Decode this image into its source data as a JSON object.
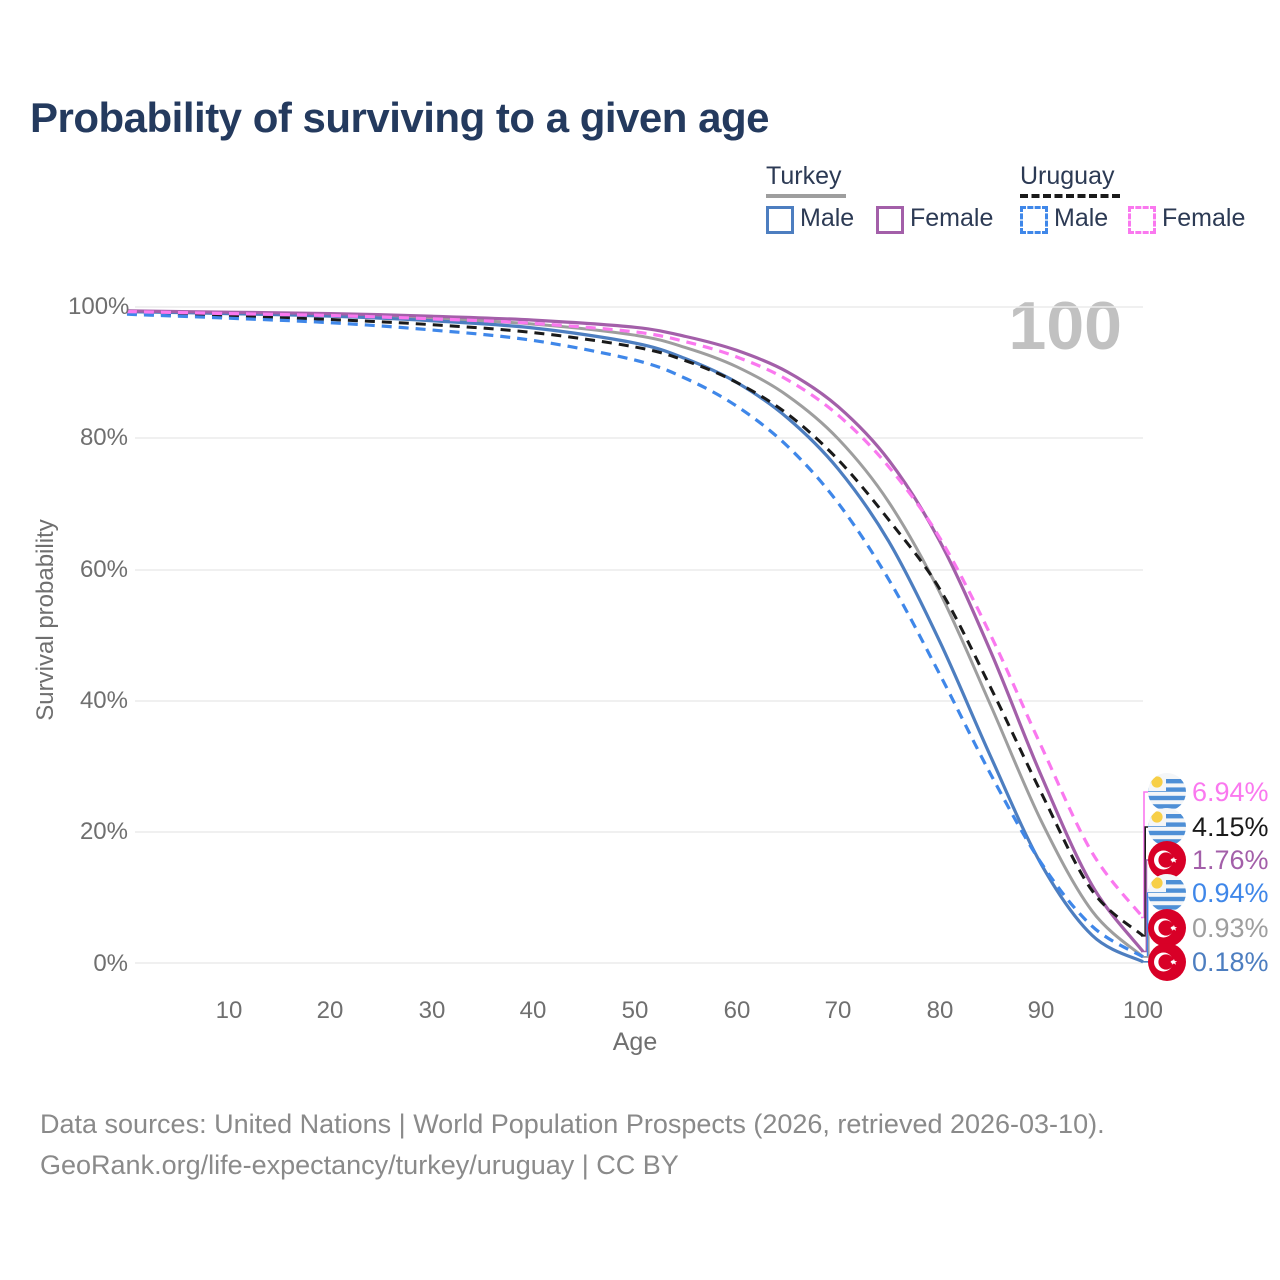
{
  "title": "Probability of surviving to a given age",
  "watermark": "100",
  "legend": {
    "turkey": {
      "label": "Turkey",
      "line_color": "#9e9e9e",
      "line_style": "solid",
      "male_label": "Male",
      "male_color": "#4d7ec0",
      "female_label": "Female",
      "female_color": "#a35fa9"
    },
    "uruguay": {
      "label": "Uruguay",
      "line_color": "#1a1a1a",
      "line_style": "dashed",
      "male_label": "Male",
      "male_color": "#3f87e9",
      "female_label": "Female",
      "female_color": "#fa78ef"
    }
  },
  "axes": {
    "y_title": "Survival probability",
    "x_title": "Age",
    "y_ticks": [
      "100%",
      "80%",
      "60%",
      "40%",
      "20%",
      "0%"
    ],
    "x_ticks": [
      "10",
      "20",
      "30",
      "40",
      "50",
      "60",
      "70",
      "80",
      "90",
      "100"
    ]
  },
  "chart_data": {
    "type": "line",
    "title": "Probability of surviving to a given age",
    "xlabel": "Age",
    "ylabel": "Survival probability",
    "xlim": [
      0,
      100
    ],
    "ylim": [
      0,
      100
    ],
    "grid": "horizontal",
    "x": [
      0,
      10,
      20,
      30,
      40,
      50,
      55,
      60,
      65,
      70,
      75,
      80,
      85,
      90,
      95,
      100
    ],
    "series": [
      {
        "name": "Turkey",
        "country": "turkey",
        "sex": "both",
        "color": "#9e9e9e",
        "dash": "none",
        "values": [
          99.35,
          99.1,
          98.8,
          98.25,
          97.4,
          95.7,
          93.8,
          90.9,
          86.5,
          79.9,
          70.2,
          56.5,
          39.3,
          21.6,
          7.9,
          0.93
        ],
        "end_label": "0.93%"
      },
      {
        "name": "Turkey Male",
        "country": "turkey",
        "sex": "male",
        "color": "#4d7ec0",
        "dash": "none",
        "values": [
          99.3,
          99.0,
          98.6,
          97.9,
          96.8,
          94.5,
          92.1,
          88.5,
          83.1,
          75.3,
          64.2,
          49.0,
          31.5,
          15.0,
          4.2,
          0.18
        ],
        "end_label": "0.18%"
      },
      {
        "name": "Turkey Female",
        "country": "turkey",
        "sex": "female",
        "color": "#a35fa9",
        "dash": "none",
        "values": [
          99.4,
          99.2,
          99.0,
          98.6,
          98.0,
          96.9,
          95.5,
          93.4,
          90.1,
          84.8,
          76.6,
          64.3,
          47.5,
          28.5,
          11.8,
          1.76
        ],
        "end_label": "1.76%"
      },
      {
        "name": "Uruguay",
        "country": "uruguay",
        "sex": "both",
        "color": "#1a1a1a",
        "dash": "10 7",
        "values": [
          99.1,
          98.6,
          98.1,
          97.3,
          96.1,
          93.9,
          91.8,
          88.5,
          83.7,
          76.7,
          67.5,
          57.0,
          42.0,
          25.9,
          11.0,
          4.15
        ],
        "end_label": "4.15%"
      },
      {
        "name": "Uruguay Male",
        "country": "uruguay",
        "sex": "male",
        "color": "#3f87e9",
        "dash": "10 7",
        "values": [
          98.9,
          98.3,
          97.6,
          96.5,
          94.9,
          91.9,
          89.1,
          84.9,
          78.8,
          70.1,
          58.4,
          44.0,
          28.8,
          15.2,
          5.6,
          0.94
        ],
        "end_label": "0.94%"
      },
      {
        "name": "Uruguay Female",
        "country": "uruguay",
        "sex": "female",
        "color": "#fa78ef",
        "dash": "10 7",
        "values": [
          99.3,
          99.0,
          98.7,
          98.2,
          97.5,
          96.2,
          94.7,
          92.4,
          88.9,
          83.5,
          75.6,
          64.8,
          50.0,
          33.0,
          16.8,
          6.94
        ],
        "end_label": "6.94%"
      }
    ]
  },
  "end_labels": [
    {
      "value": "6.94%",
      "pct": 6.94,
      "flag": "uruguay",
      "color": "#fa78ef"
    },
    {
      "value": "4.15%",
      "pct": 4.15,
      "flag": "uruguay",
      "color": "#1a1a1a"
    },
    {
      "value": "1.76%",
      "pct": 1.76,
      "flag": "turkey",
      "color": "#a35fa9"
    },
    {
      "value": "0.94%",
      "pct": 0.94,
      "flag": "uruguay",
      "color": "#3f87e9"
    },
    {
      "value": "0.93%",
      "pct": 0.93,
      "flag": "turkey",
      "color": "#9e9e9e"
    },
    {
      "value": "0.18%",
      "pct": 0.18,
      "flag": "turkey",
      "color": "#4d7ec0"
    }
  ],
  "footer": {
    "line1": "Data sources: United Nations | World Population Prospects (2026, retrieved 2026-03-10).",
    "line2": "GeoRank.org/life-expectancy/turkey/uruguay | CC BY"
  }
}
